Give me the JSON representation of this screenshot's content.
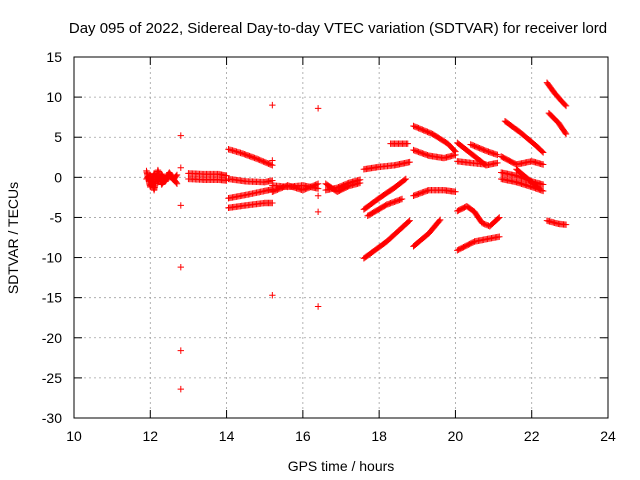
{
  "chart_data": {
    "type": "scatter",
    "title": "Day 095 of 2022, Sidereal Day-to-day VTEC variation (SDTVAR) for receiver lord",
    "xlabel": "GPS time / hours",
    "ylabel": "SDTVAR / TECUs",
    "xlim": [
      10,
      24
    ],
    "ylim": [
      -30,
      15
    ],
    "xticks": [
      10,
      12,
      14,
      16,
      18,
      20,
      22,
      24
    ],
    "xtick_labels": [
      "10",
      "12",
      "14",
      "16",
      "18",
      "20",
      "22",
      "24"
    ],
    "yticks": [
      15,
      10,
      5,
      0,
      -5,
      -10,
      -15,
      -20,
      -25,
      -30
    ],
    "ytick_labels": [
      "15",
      "10",
      "5",
      "0",
      "-5",
      "-10",
      "-15",
      "-20",
      "-25",
      "-30"
    ],
    "grid": true,
    "marker": "+",
    "color": "#ff0000",
    "tracks": [
      [
        [
          11.9,
          0.8
        ],
        [
          12.0,
          -1.2
        ],
        [
          12.1,
          0.5
        ],
        [
          12.2,
          -0.6
        ],
        [
          12.3,
          0.4
        ],
        [
          12.4,
          -0.5
        ],
        [
          12.5,
          0.2
        ],
        [
          12.6,
          -0.3
        ],
        [
          12.7,
          0.3
        ]
      ],
      [
        [
          11.9,
          -0.2
        ],
        [
          12.0,
          0.3
        ],
        [
          12.1,
          -1.6
        ],
        [
          12.2,
          0.9
        ],
        [
          12.3,
          -0.9
        ],
        [
          12.5,
          0.6
        ],
        [
          12.7,
          -0.8
        ]
      ],
      [
        [
          13.0,
          0.5
        ],
        [
          13.4,
          0.4
        ],
        [
          13.8,
          0.4
        ],
        [
          14.0,
          0.2
        ]
      ],
      [
        [
          13.0,
          -0.2
        ],
        [
          13.4,
          -0.3
        ],
        [
          13.8,
          -0.3
        ],
        [
          14.0,
          -0.4
        ]
      ],
      [
        [
          14.05,
          3.5
        ],
        [
          14.4,
          3.0
        ],
        [
          14.8,
          2.3
        ],
        [
          15.2,
          1.5
        ]
      ],
      [
        [
          14.05,
          -0.2
        ],
        [
          14.5,
          -0.5
        ],
        [
          15.0,
          -0.6
        ],
        [
          15.2,
          -0.4
        ]
      ],
      [
        [
          14.05,
          -2.6
        ],
        [
          14.5,
          -2.2
        ],
        [
          15.0,
          -1.7
        ],
        [
          15.2,
          -1.5
        ]
      ],
      [
        [
          14.05,
          -3.8
        ],
        [
          14.5,
          -3.5
        ],
        [
          15.0,
          -3.2
        ],
        [
          15.2,
          -3.2
        ]
      ],
      [
        [
          15.2,
          -1.0
        ],
        [
          15.6,
          -1.2
        ],
        [
          16.0,
          -1.0
        ],
        [
          16.4,
          -1.4
        ]
      ],
      [
        [
          15.2,
          -1.8
        ],
        [
          15.6,
          -1.0
        ],
        [
          16.0,
          -1.6
        ],
        [
          16.4,
          -0.8
        ]
      ],
      [
        [
          16.6,
          -1.6
        ],
        [
          16.9,
          -1.3
        ],
        [
          17.2,
          -0.7
        ],
        [
          17.5,
          -0.3
        ]
      ],
      [
        [
          16.6,
          -0.8
        ],
        [
          16.9,
          -1.8
        ],
        [
          17.2,
          -1.1
        ],
        [
          17.5,
          -0.7
        ]
      ],
      [
        [
          17.6,
          1.0
        ],
        [
          18.0,
          1.3
        ],
        [
          18.4,
          1.5
        ],
        [
          18.8,
          1.9
        ]
      ],
      [
        [
          18.3,
          4.2
        ],
        [
          18.75,
          4.2
        ]
      ],
      [
        [
          17.6,
          -4.0
        ],
        [
          18.0,
          -2.6
        ],
        [
          18.4,
          -1.3
        ],
        [
          18.7,
          -0.2
        ]
      ],
      [
        [
          17.7,
          -4.8
        ],
        [
          18.2,
          -3.4
        ],
        [
          18.6,
          -2.7
        ]
      ],
      [
        [
          17.6,
          -10.1
        ],
        [
          18.2,
          -8.0
        ],
        [
          18.8,
          -5.4
        ]
      ],
      [
        [
          18.9,
          6.4
        ],
        [
          19.4,
          5.4
        ],
        [
          19.8,
          4.2
        ],
        [
          20.0,
          3.2
        ]
      ],
      [
        [
          18.9,
          3.4
        ],
        [
          19.3,
          2.7
        ],
        [
          19.7,
          2.4
        ],
        [
          20.0,
          2.8
        ]
      ],
      [
        [
          18.9,
          -2.3
        ],
        [
          19.3,
          -1.6
        ],
        [
          19.7,
          -1.6
        ],
        [
          20.0,
          -1.8
        ]
      ],
      [
        [
          18.9,
          -8.6
        ],
        [
          19.3,
          -7.0
        ],
        [
          19.6,
          -5.3
        ]
      ],
      [
        [
          20.05,
          4.3
        ],
        [
          20.4,
          3.0
        ],
        [
          20.8,
          1.5
        ],
        [
          21.1,
          1.8
        ]
      ],
      [
        [
          20.05,
          2.0
        ],
        [
          20.4,
          1.8
        ],
        [
          20.8,
          1.6
        ]
      ],
      [
        [
          20.4,
          4.1
        ],
        [
          20.8,
          3.3
        ],
        [
          21.1,
          2.8
        ]
      ],
      [
        [
          20.05,
          -4.2
        ],
        [
          20.3,
          -3.6
        ],
        [
          20.5,
          -4.3
        ],
        [
          20.7,
          -5.7
        ],
        [
          20.9,
          -6.1
        ],
        [
          21.15,
          -5.0
        ]
      ],
      [
        [
          20.05,
          -9.1
        ],
        [
          20.5,
          -8.0
        ],
        [
          21.15,
          -7.4
        ]
      ],
      [
        [
          21.3,
          7.0
        ],
        [
          21.7,
          5.6
        ],
        [
          22.1,
          4.0
        ],
        [
          22.3,
          3.1
        ]
      ],
      [
        [
          21.2,
          2.6
        ],
        [
          21.6,
          1.6
        ],
        [
          22.0,
          2.0
        ],
        [
          22.3,
          1.6
        ]
      ],
      [
        [
          21.2,
          0.6
        ],
        [
          21.6,
          0.2
        ],
        [
          22.0,
          -0.5
        ],
        [
          22.3,
          -0.9
        ]
      ],
      [
        [
          21.2,
          -0.2
        ],
        [
          21.6,
          -0.6
        ],
        [
          22.0,
          -1.2
        ],
        [
          22.3,
          -1.7
        ]
      ],
      [
        [
          21.6,
          1.0
        ],
        [
          21.9,
          -0.2
        ],
        [
          22.2,
          -1.4
        ]
      ],
      [
        [
          22.4,
          11.8
        ],
        [
          22.6,
          10.5
        ],
        [
          22.8,
          9.4
        ],
        [
          22.9,
          8.9
        ]
      ],
      [
        [
          22.45,
          8.0
        ],
        [
          22.7,
          6.8
        ],
        [
          22.9,
          5.4
        ]
      ],
      [
        [
          22.4,
          -5.4
        ],
        [
          22.7,
          -5.8
        ],
        [
          22.9,
          -5.9
        ]
      ]
    ],
    "points": [
      [
        12.8,
        5.2
      ],
      [
        12.8,
        1.2
      ],
      [
        12.8,
        -3.5
      ],
      [
        12.8,
        -11.2
      ],
      [
        12.8,
        -21.6
      ],
      [
        12.8,
        -26.4
      ],
      [
        15.2,
        9.0
      ],
      [
        15.2,
        2.1
      ],
      [
        15.2,
        -14.7
      ],
      [
        16.4,
        8.6
      ],
      [
        16.4,
        -2.3
      ],
      [
        16.4,
        -4.3
      ],
      [
        16.4,
        -16.1
      ]
    ]
  }
}
